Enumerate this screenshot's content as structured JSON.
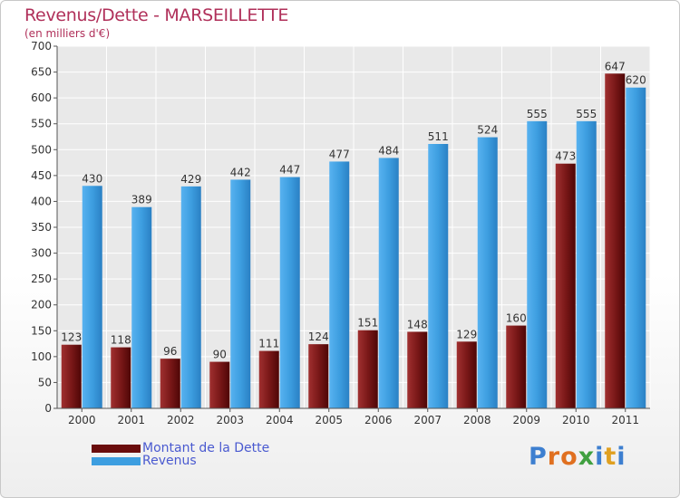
{
  "header": {
    "title": "Revenus/Dette - MARSEILLETTE",
    "subtitle": "(en milliers d'€)"
  },
  "chart_data": {
    "type": "bar",
    "categories": [
      "2000",
      "2001",
      "2002",
      "2003",
      "2004",
      "2005",
      "2006",
      "2007",
      "2008",
      "2009",
      "2010",
      "2011"
    ],
    "series": [
      {
        "name": "Montant de la Dette",
        "values": [
          123,
          118,
          96,
          90,
          111,
          124,
          151,
          148,
          129,
          160,
          473,
          647
        ],
        "color": "#7a1a1a"
      },
      {
        "name": "Revenus",
        "values": [
          430,
          389,
          429,
          442,
          447,
          477,
          484,
          511,
          524,
          555,
          555,
          620
        ],
        "color": "#3d9ee0"
      }
    ],
    "ylim": [
      0,
      700
    ],
    "yticks": [
      "0",
      "50",
      "100",
      "150",
      "200",
      "250",
      "300",
      "350",
      "400",
      "450",
      "500",
      "550",
      "600",
      "650",
      "700"
    ],
    "grid": true,
    "legend": "bottom-left"
  },
  "legend": {
    "items": [
      {
        "label": "Montant de la Dette",
        "color": "#6a0c0c"
      },
      {
        "label": "Revenus",
        "color": "#3d9ee0"
      }
    ]
  },
  "logo": {
    "letters": [
      "P",
      "r",
      "o",
      "x",
      "i",
      "t",
      "i"
    ],
    "colors": [
      "#3d7fd0",
      "#e07020",
      "#e07020",
      "#40a040",
      "#3d7fd0",
      "#e0a020",
      "#3d7fd0"
    ]
  }
}
